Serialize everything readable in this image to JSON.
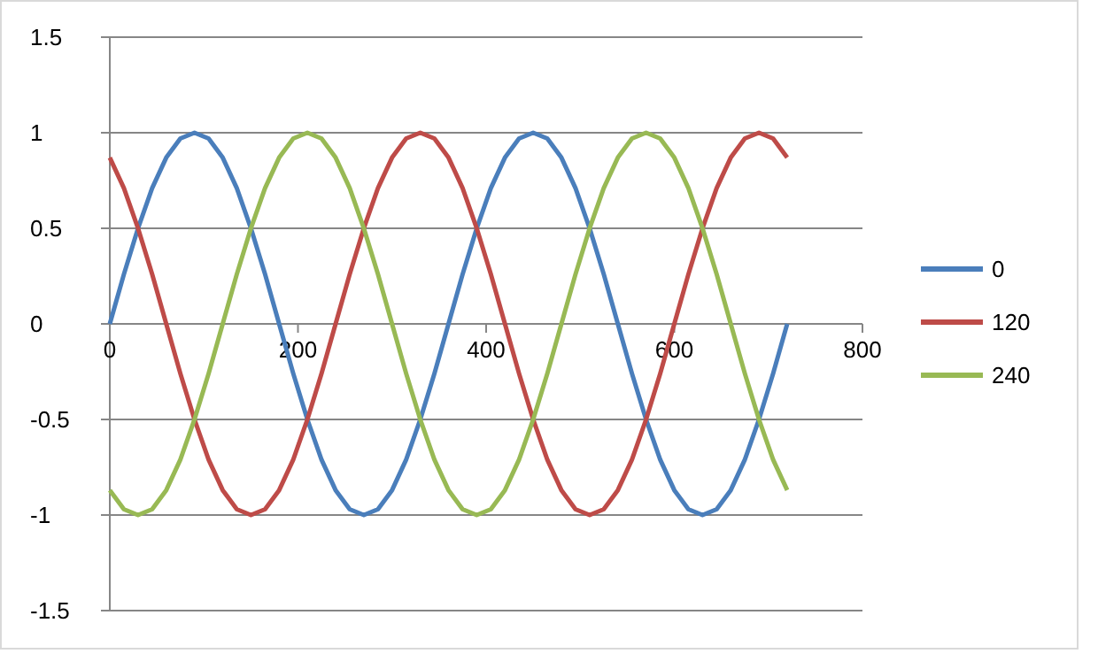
{
  "chart_data": {
    "type": "line",
    "x": [
      0,
      15,
      30,
      45,
      60,
      75,
      90,
      105,
      120,
      135,
      150,
      165,
      180,
      195,
      210,
      225,
      240,
      255,
      270,
      285,
      300,
      315,
      330,
      345,
      360,
      375,
      390,
      405,
      420,
      435,
      450,
      465,
      480,
      495,
      510,
      525,
      540,
      555,
      570,
      585,
      600,
      615,
      630,
      645,
      660,
      675,
      690,
      705,
      720
    ],
    "series": [
      {
        "name": "0",
        "color": "#4a7ebb",
        "values": [
          0,
          0.26,
          0.5,
          0.71,
          0.87,
          0.97,
          1,
          0.97,
          0.87,
          0.71,
          0.5,
          0.26,
          0,
          -0.26,
          -0.5,
          -0.71,
          -0.87,
          -0.97,
          -1,
          -0.97,
          -0.87,
          -0.71,
          -0.5,
          -0.26,
          0,
          0.26,
          0.5,
          0.71,
          0.87,
          0.97,
          1,
          0.97,
          0.87,
          0.71,
          0.5,
          0.26,
          0,
          -0.26,
          -0.5,
          -0.71,
          -0.87,
          -0.97,
          -1,
          -0.97,
          -0.87,
          -0.71,
          -0.5,
          -0.26,
          0
        ]
      },
      {
        "name": "120",
        "color": "#be4b48",
        "values": [
          0.87,
          0.71,
          0.5,
          0.26,
          0,
          -0.26,
          -0.5,
          -0.71,
          -0.87,
          -0.97,
          -1,
          -0.97,
          -0.87,
          -0.71,
          -0.5,
          -0.26,
          0,
          0.26,
          0.5,
          0.71,
          0.87,
          0.97,
          1,
          0.97,
          0.87,
          0.71,
          0.5,
          0.26,
          0,
          -0.26,
          -0.5,
          -0.71,
          -0.87,
          -0.97,
          -1,
          -0.97,
          -0.87,
          -0.71,
          -0.5,
          -0.26,
          0,
          0.26,
          0.5,
          0.71,
          0.87,
          0.97,
          1,
          0.97,
          0.87
        ]
      },
      {
        "name": "240",
        "color": "#98b954",
        "values": [
          -0.87,
          -0.97,
          -1,
          -0.97,
          -0.87,
          -0.71,
          -0.5,
          -0.26,
          0,
          0.26,
          0.5,
          0.71,
          0.87,
          0.97,
          1,
          0.97,
          0.87,
          0.71,
          0.5,
          0.26,
          0,
          -0.26,
          -0.5,
          -0.71,
          -0.87,
          -0.97,
          -1,
          -0.97,
          -0.87,
          -0.71,
          -0.5,
          -0.26,
          0,
          0.26,
          0.5,
          0.71,
          0.87,
          0.97,
          1,
          0.97,
          0.87,
          0.71,
          0.5,
          0.26,
          0,
          -0.26,
          -0.5,
          -0.71,
          -0.87
        ]
      }
    ],
    "xlim": [
      0,
      800
    ],
    "xticks": [
      0,
      200,
      400,
      600,
      800
    ],
    "ylim": [
      -1.5,
      1.5
    ],
    "yticks": [
      -1.5,
      -1,
      -0.5,
      0,
      0.5,
      1,
      1.5
    ],
    "grid": "y",
    "legend": "right",
    "marker": "none",
    "line_style": "solid"
  }
}
